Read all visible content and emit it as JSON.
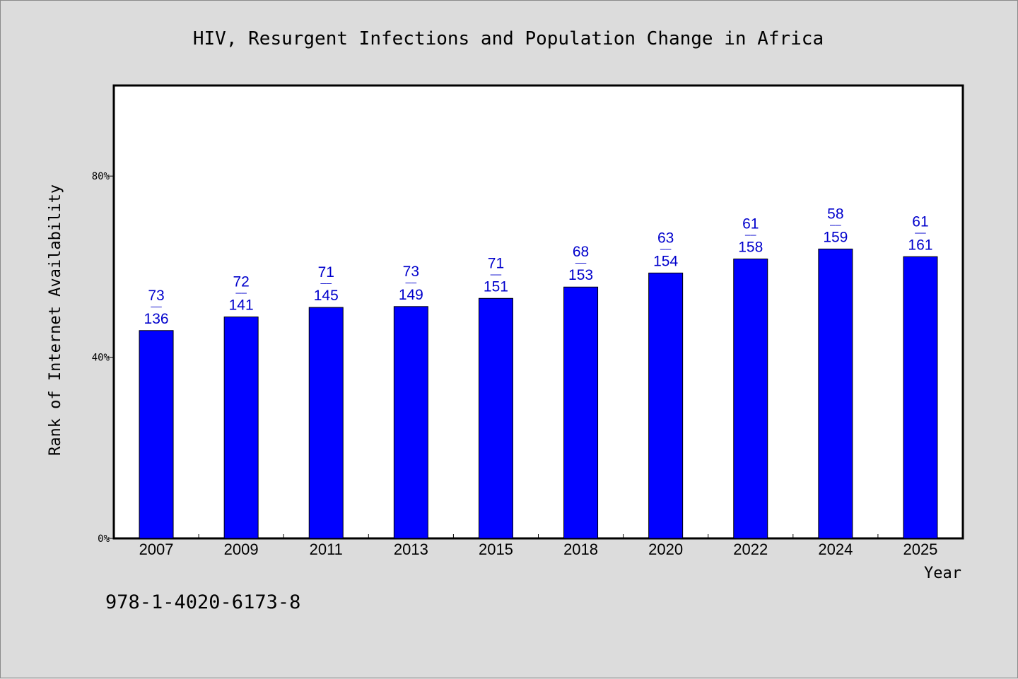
{
  "chart_data": {
    "type": "bar",
    "title": "HIV, Resurgent Infections and Population Change in Africa",
    "xlabel": "Year",
    "ylabel": "Rank of Internet Availability",
    "ylim": [
      0,
      100
    ],
    "yticks": [
      {
        "value": 0,
        "label": "0%"
      },
      {
        "value": 40,
        "label": "40%"
      },
      {
        "value": 80,
        "label": "80%"
      }
    ],
    "grid": false,
    "legend": "none",
    "bar_color": "#0000ff",
    "label_color": "#0000cc",
    "categories": [
      "2007",
      "2009",
      "2011",
      "2013",
      "2015",
      "2018",
      "2020",
      "2022",
      "2024",
      "2025"
    ],
    "values": [
      45.9,
      48.9,
      51.0,
      51.2,
      53.0,
      55.5,
      58.6,
      61.7,
      63.9,
      62.2
    ],
    "data_labels": [
      {
        "top": "73",
        "sep": "——",
        "bottom": "136"
      },
      {
        "top": "72",
        "sep": "——",
        "bottom": "141"
      },
      {
        "top": "71",
        "sep": "——",
        "bottom": "145"
      },
      {
        "top": "73",
        "sep": "——",
        "bottom": "149"
      },
      {
        "top": "71",
        "sep": "——",
        "bottom": "151"
      },
      {
        "top": "68",
        "sep": "——",
        "bottom": "153"
      },
      {
        "top": "63",
        "sep": "——",
        "bottom": "154"
      },
      {
        "top": "61",
        "sep": "——",
        "bottom": "158"
      },
      {
        "top": "58",
        "sep": "——",
        "bottom": "159"
      },
      {
        "top": "61",
        "sep": "——",
        "bottom": "161"
      }
    ]
  },
  "footer": {
    "isbn": "978-1-4020-6173-8"
  }
}
